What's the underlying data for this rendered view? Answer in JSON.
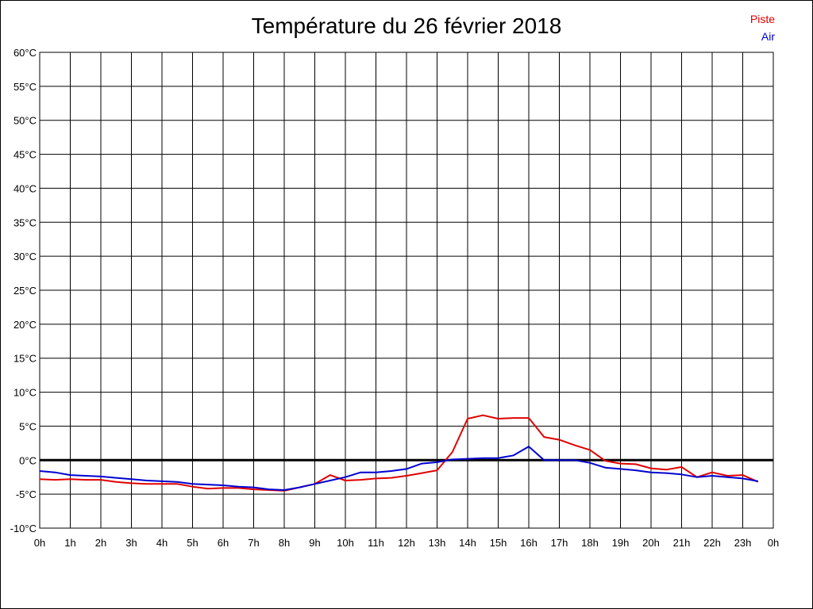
{
  "chart_data": {
    "type": "line",
    "title": "Température du 26 février 2018",
    "xlabel": "",
    "ylabel": "",
    "xlim": [
      0,
      24
    ],
    "ylim": [
      -10,
      60
    ],
    "x_tick_labels": [
      "0h",
      "1h",
      "2h",
      "3h",
      "4h",
      "5h",
      "6h",
      "7h",
      "8h",
      "9h",
      "10h",
      "11h",
      "12h",
      "13h",
      "14h",
      "15h",
      "16h",
      "17h",
      "18h",
      "19h",
      "20h",
      "21h",
      "22h",
      "23h",
      "0h"
    ],
    "y_tick_labels": [
      "60°C",
      "55°C",
      "50°C",
      "45°C",
      "40°C",
      "35°C",
      "30°C",
      "25°C",
      "20°C",
      "15°C",
      "10°C",
      "5°C",
      "0°C",
      "-5°C",
      "-10°C"
    ],
    "grid": true,
    "legend_position": "top-right",
    "x": [
      0,
      0.5,
      1,
      1.5,
      2,
      2.5,
      3,
      3.5,
      4,
      4.5,
      5,
      5.5,
      6,
      6.5,
      7,
      7.5,
      8,
      8.5,
      9,
      9.5,
      10,
      10.5,
      11,
      11.5,
      12,
      12.5,
      13,
      13.5,
      14,
      14.5,
      15,
      15.5,
      16,
      16.5,
      17,
      17.5,
      18,
      18.5,
      19,
      19.5,
      20,
      20.5,
      21,
      21.5,
      22,
      22.5,
      23,
      23.5
    ],
    "series": [
      {
        "name": "Piste",
        "color": "#e00000",
        "values": [
          -2.8,
          -2.9,
          -2.8,
          -2.9,
          -2.9,
          -3.2,
          -3.4,
          -3.5,
          -3.5,
          -3.5,
          -3.9,
          -4.2,
          -4.1,
          -4.1,
          -4.3,
          -4.4,
          -4.5,
          -4.0,
          -3.5,
          -2.2,
          -3.0,
          -2.9,
          -2.7,
          -2.6,
          -2.3,
          -1.9,
          -1.5,
          1.2,
          6.1,
          6.6,
          6.1,
          6.2,
          6.2,
          3.4,
          3.0,
          2.2,
          1.5,
          -0.1,
          -0.5,
          -0.6,
          -1.2,
          -1.4,
          -1.0,
          -2.5,
          -1.8,
          -2.3,
          -2.2,
          -3.2
        ]
      },
      {
        "name": "Air",
        "color": "#0000d0",
        "values": [
          -1.6,
          -1.8,
          -2.2,
          -2.3,
          -2.4,
          -2.6,
          -2.8,
          -3.0,
          -3.1,
          -3.2,
          -3.5,
          -3.6,
          -3.7,
          -3.9,
          -4.0,
          -4.3,
          -4.4,
          -4.0,
          -3.5,
          -3.0,
          -2.5,
          -1.8,
          -1.8,
          -1.6,
          -1.3,
          -0.5,
          -0.3,
          0.1,
          0.2,
          0.3,
          0.3,
          0.7,
          2.0,
          0.0,
          0.0,
          0.0,
          -0.4,
          -1.1,
          -1.3,
          -1.5,
          -1.8,
          -1.9,
          -2.1,
          -2.5,
          -2.3,
          -2.5,
          -2.7,
          -3.1
        ]
      }
    ]
  }
}
